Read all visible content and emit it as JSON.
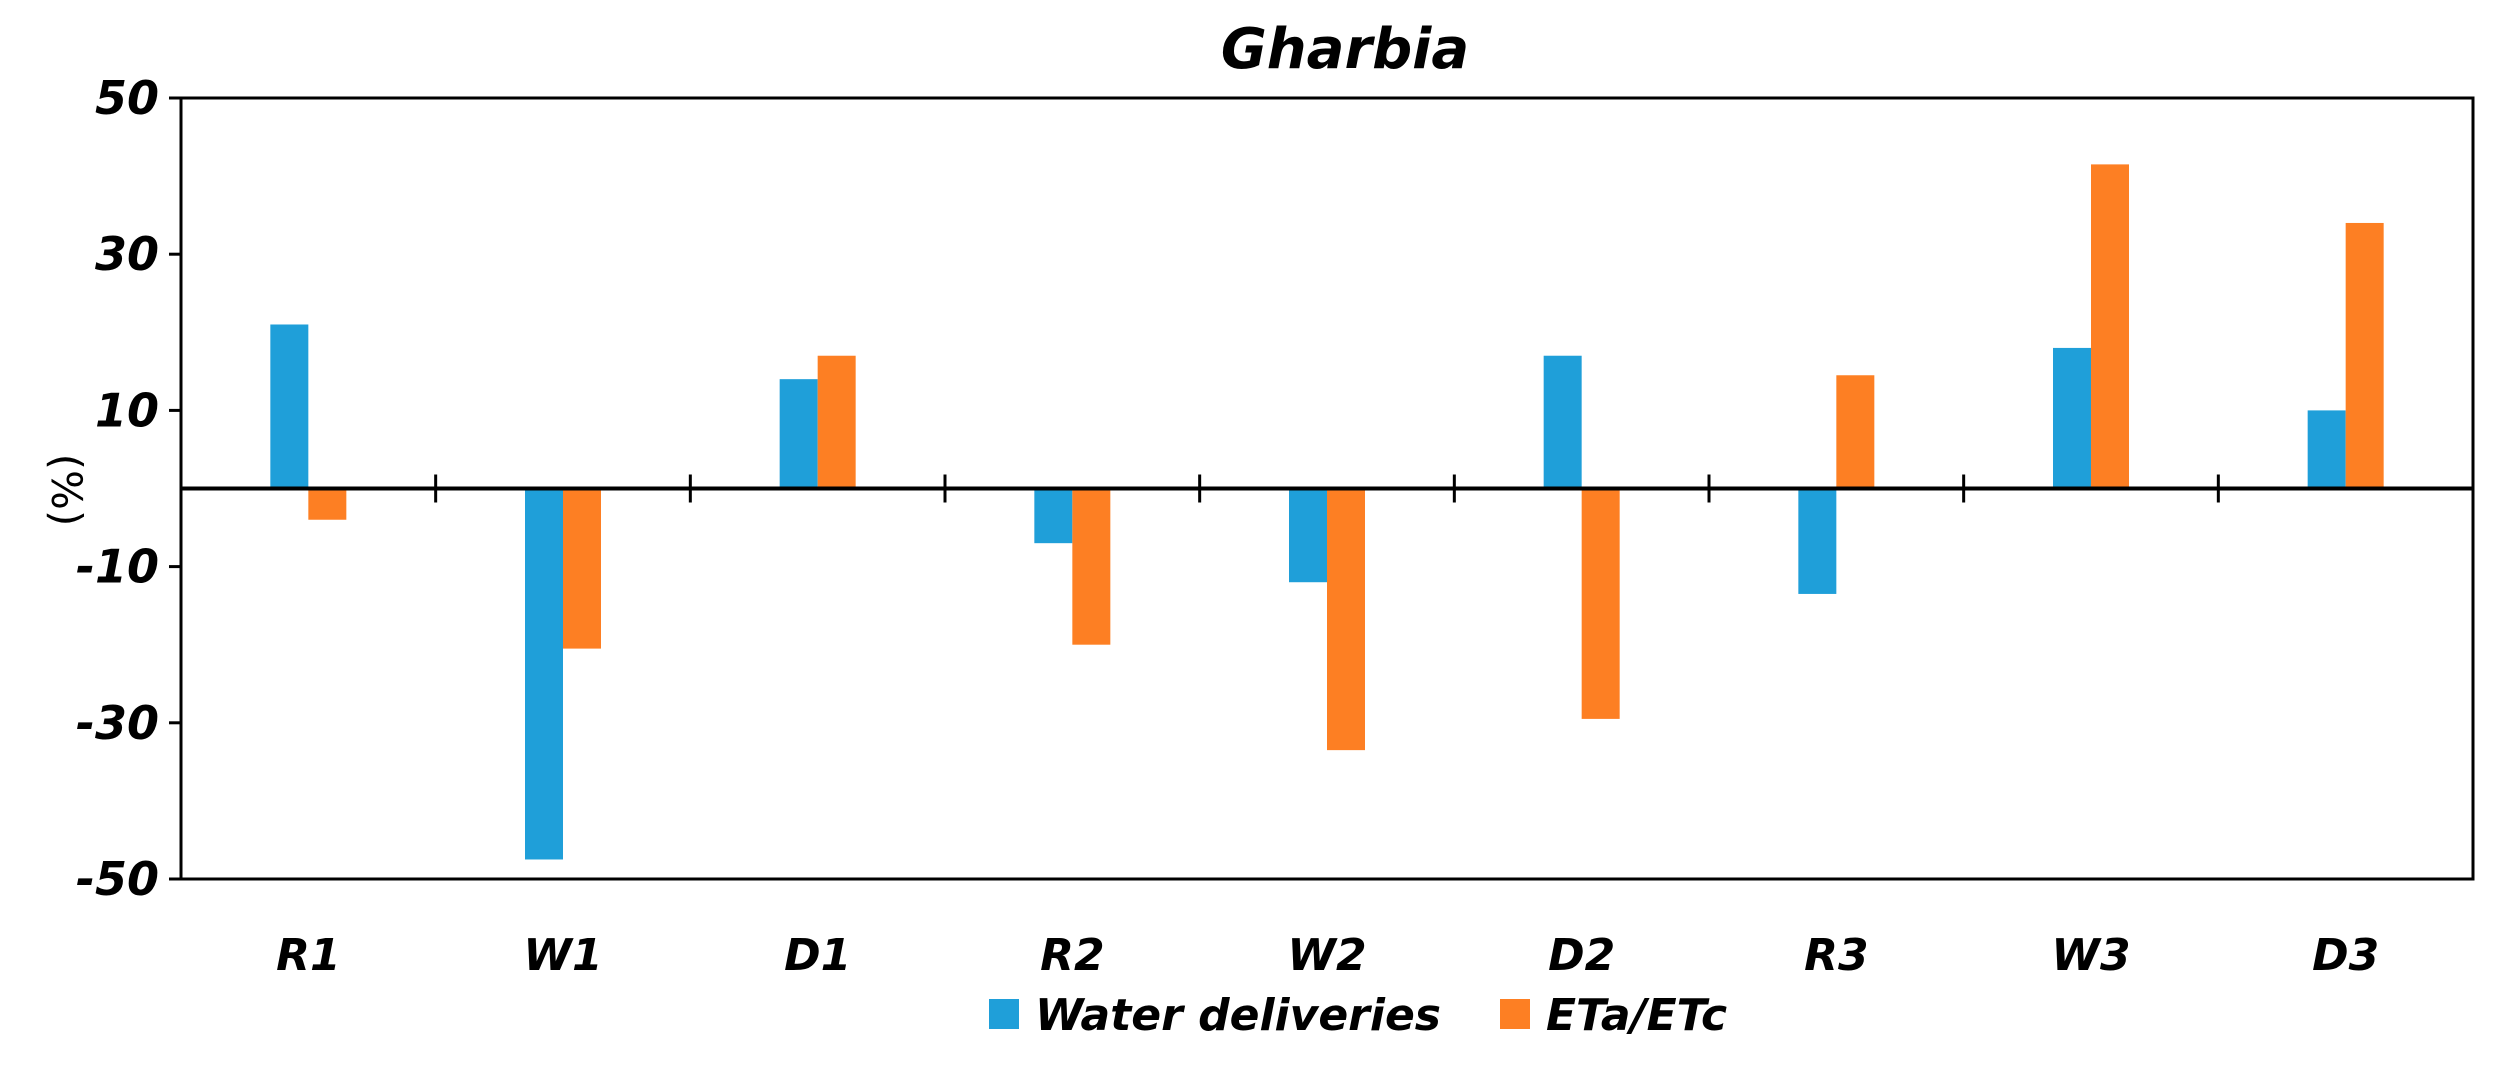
{
  "chart_data": {
    "type": "bar",
    "title": "Gharbia",
    "xlabel": "",
    "ylabel": "(%)",
    "ylim": [
      -50,
      50
    ],
    "yticks": [
      -50,
      -30,
      -10,
      10,
      30,
      50
    ],
    "categories": [
      "R1",
      "W1",
      "D1",
      "R2",
      "W2",
      "D2",
      "R3",
      "W3",
      "D3"
    ],
    "series": [
      {
        "name": "Water deliveries",
        "color": "#1f9fd9",
        "values": [
          21,
          -47.5,
          14,
          -7,
          -12,
          17,
          -13.5,
          18,
          10
        ]
      },
      {
        "name": "ETa/ETc",
        "color": "#fd7f23",
        "values": [
          -4,
          -20.5,
          17,
          -20,
          -33.5,
          -29.5,
          14.5,
          41.5,
          34
        ]
      }
    ],
    "legend_position": "bottom",
    "grid": false
  }
}
